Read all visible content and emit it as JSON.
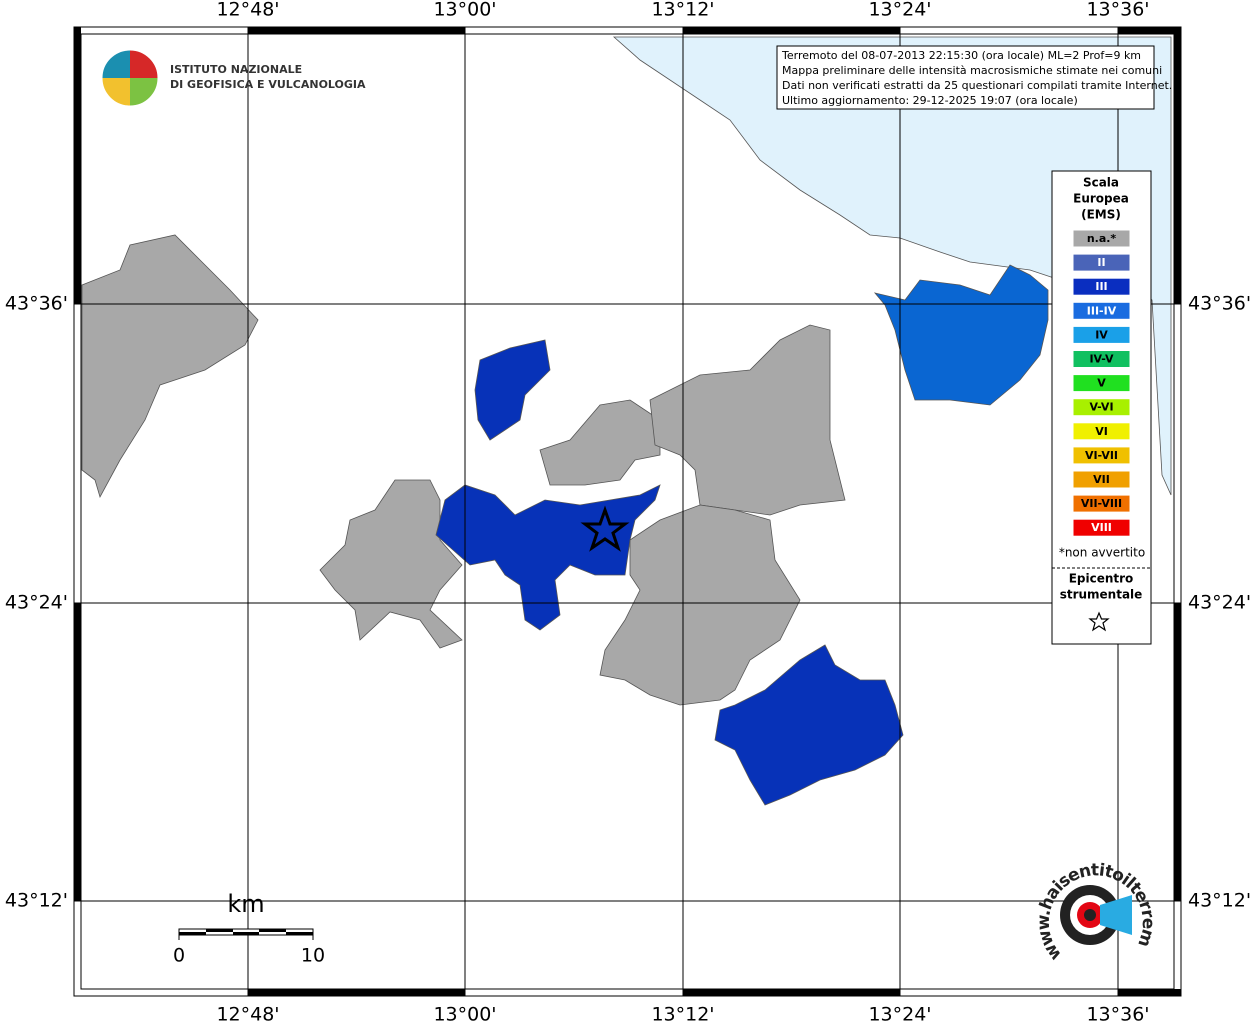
{
  "axes": {
    "top": [
      "12°48'",
      "13°00'",
      "13°12'",
      "13°24'",
      "13°36'"
    ],
    "bottom": [
      "12°48'",
      "13°00'",
      "13°12'",
      "13°24'",
      "13°36'"
    ],
    "left": [
      "43°36'",
      "43°24'",
      "43°12'"
    ],
    "right": [
      "43°36'",
      "43°24'",
      "43°12'"
    ]
  },
  "info": [
    "Terremoto del 08-07-2013 22:15:30 (ora locale) ML=2 Prof=9 km",
    "Mappa preliminare delle intensità macrosismiche stimate nei comuni",
    "Dati non verificati estratti da 25 questionari compilati tramite Internet.",
    "Ultimo aggiornamento: 29-12-2025 19:07 (ora locale)"
  ],
  "logo": [
    "ISTITUTO NAZIONALE",
    "DI GEOFISICA E VULCANOLOGIA"
  ],
  "legend": {
    "title": [
      "Scala",
      "Europea",
      "(EMS)"
    ],
    "items": [
      {
        "label": "n.a.*",
        "color": "#a8a8a8"
      },
      {
        "label": "II",
        "color": "#4a64b8"
      },
      {
        "label": "III",
        "color": "#0a2ec0"
      },
      {
        "label": "III-IV",
        "color": "#1a6ce0"
      },
      {
        "label": "IV",
        "color": "#1aa0e8"
      },
      {
        "label": "IV-V",
        "color": "#10c060"
      },
      {
        "label": "V",
        "color": "#20e020"
      },
      {
        "label": "V-VI",
        "color": "#a8f000"
      },
      {
        "label": "VI",
        "color": "#f0f000"
      },
      {
        "label": "VI-VII",
        "color": "#f0c000"
      },
      {
        "label": "VII",
        "color": "#f0a000"
      },
      {
        "label": "VII-VIII",
        "color": "#f07000"
      },
      {
        "label": "VIII",
        "color": "#f00000"
      }
    ],
    "note": "*non avvertito",
    "epicenter": [
      "Epicentro",
      "strumentale"
    ]
  },
  "scalebar": {
    "unit": "km",
    "start": 0,
    "end": 10
  },
  "badge": "www.haisentitoilterremoto.it"
}
